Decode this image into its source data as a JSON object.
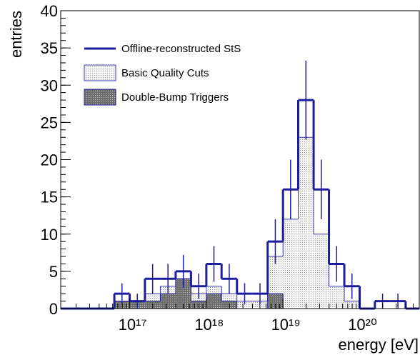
{
  "chart_data": {
    "type": "histogram",
    "x_label": "energy [eV]",
    "y_label": "entries",
    "log_x": true,
    "xlim": [
      1.26e+16,
      6e+20
    ],
    "ylim": [
      0,
      40
    ],
    "xticks": [
      {
        "value": 1e+17,
        "label": "10¹⁷"
      },
      {
        "value": 1e+18,
        "label": "10¹⁸"
      },
      {
        "value": 1e+19,
        "label": "10¹⁹"
      },
      {
        "value": 1e+20,
        "label": "10²⁰"
      }
    ],
    "yticks": [
      0,
      5,
      10,
      15,
      20,
      25,
      30,
      35,
      40
    ],
    "bins": [
      6.31e+16,
      1e+17,
      1.58e+17,
      2.51e+17,
      3.98e+17,
      6.31e+17,
      1e+18,
      1.58e+18,
      2.51e+18,
      3.98e+18,
      6.31e+18,
      1e+19,
      1.58e+19,
      2.51e+19,
      3.98e+19,
      6.31e+19,
      1e+20,
      1.58e+20,
      2.51e+20,
      3.98e+20
    ],
    "legend": "top-left",
    "series": [
      {
        "name": "Offline-reconstructed StS",
        "color": "#1c1c9c",
        "style": "line",
        "values": [
          2,
          1,
          4,
          4,
          5,
          3,
          6,
          4,
          2,
          2,
          9,
          16,
          28,
          16,
          6,
          3,
          0,
          1,
          1
        ],
        "errors": [
          1.4,
          1,
          2,
          2,
          2.2,
          1.7,
          2.4,
          2,
          1.4,
          1.4,
          3,
          4,
          5.3,
          4,
          2.4,
          1.7,
          0,
          1,
          1
        ]
      },
      {
        "name": "Basic Quality Cuts",
        "color": "#3a3ab0",
        "fill": "#e6e6e6",
        "style": "dotted",
        "values": [
          1,
          1,
          2,
          3,
          4,
          2,
          3,
          2,
          1,
          1,
          7,
          12,
          23,
          10,
          3,
          1,
          0,
          0,
          0
        ]
      },
      {
        "name": "Double-Bump Triggers",
        "color": "#1c1c9c",
        "fill": "#8c8c8c",
        "style": "dense",
        "values": [
          1,
          1,
          1,
          2,
          4,
          1,
          2,
          1,
          0,
          0,
          2,
          0,
          0,
          0,
          0,
          0,
          0,
          0,
          0
        ]
      }
    ]
  }
}
